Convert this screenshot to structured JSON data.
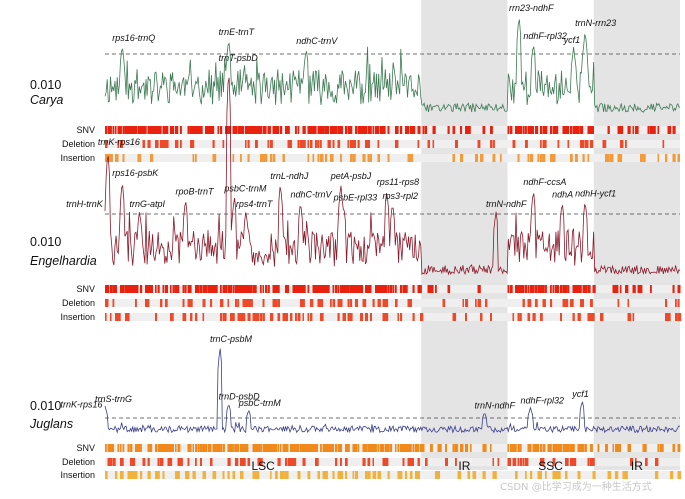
{
  "colors": {
    "carya_line": "#3f7a55",
    "engelhardia_line": "#8b1a2b",
    "juglans_line": "#3a3f8c",
    "snv_carya": "#e8220e",
    "snv_engel": "#e8220e",
    "snv_juglans": "#f08a1c",
    "deletion": "#ee4a2a",
    "insertion_carya": "#f39a3a",
    "insertion_engel": "#ee4a2a",
    "insertion_juglans": "#f2b23a",
    "ir_shade": "#e4e4e4",
    "track_bg": "#efefef"
  },
  "chart_data": [
    {
      "type": "line",
      "taxon": "Carya",
      "threshold_label": "0.010",
      "threshold": 0.01,
      "annotations": [
        {
          "text": "rps16-trnQ",
          "pos": 0.03,
          "value": 0.0115
        },
        {
          "text": "trnE-trnT",
          "pos": 0.215,
          "value": 0.0125
        },
        {
          "text": "ndhC-trnV",
          "pos": 0.35,
          "value": 0.011
        },
        {
          "text": "rrn23-ndhF",
          "pos": 0.72,
          "value": 0.0165
        },
        {
          "text": "ndhF-rpl32",
          "pos": 0.745,
          "value": 0.0118
        },
        {
          "text": "ycf1",
          "pos": 0.815,
          "value": 0.0112
        },
        {
          "text": "trnN-rrn23",
          "pos": 0.835,
          "value": 0.014
        }
      ],
      "tracks": [
        "SNV",
        "Deletion",
        "Insertion"
      ]
    },
    {
      "type": "line",
      "taxon": "Engelhardia",
      "threshold_label": "0.010",
      "threshold": 0.01,
      "annotations": [
        {
          "text": "trnH-trnK",
          "pos": -0.05,
          "value": 0.0105
        },
        {
          "text": "trnK-rps16",
          "pos": 0.005,
          "value": 0.0205
        },
        {
          "text": "rps16-psbK",
          "pos": 0.03,
          "value": 0.0155
        },
        {
          "text": "trnG-atpI",
          "pos": 0.06,
          "value": 0.0105
        },
        {
          "text": "rpoB-trnT",
          "pos": 0.14,
          "value": 0.0125
        },
        {
          "text": "trnT-psbD",
          "pos": 0.215,
          "value": 0.034
        },
        {
          "text": "psbC-trnM",
          "pos": 0.225,
          "value": 0.013
        },
        {
          "text": "rps4-trnT",
          "pos": 0.245,
          "value": 0.0105
        },
        {
          "text": "trnL-ndhJ",
          "pos": 0.305,
          "value": 0.015
        },
        {
          "text": "ndhC-trnV",
          "pos": 0.34,
          "value": 0.012
        },
        {
          "text": "petA-psbJ",
          "pos": 0.41,
          "value": 0.015
        },
        {
          "text": "psbE-rpl33",
          "pos": 0.415,
          "value": 0.0115
        },
        {
          "text": "rps11-rps8",
          "pos": 0.49,
          "value": 0.014
        },
        {
          "text": "rps3-rpl2",
          "pos": 0.5,
          "value": 0.0118
        },
        {
          "text": "trnN-ndhF",
          "pos": 0.68,
          "value": 0.0105
        },
        {
          "text": "ndhF-ccsA",
          "pos": 0.745,
          "value": 0.014
        },
        {
          "text": "ndhA",
          "pos": 0.795,
          "value": 0.012
        },
        {
          "text": "ndhH-ycf1",
          "pos": 0.835,
          "value": 0.0122
        }
      ],
      "tracks": [
        "SNV",
        "Deletion",
        "Insertion"
      ]
    },
    {
      "type": "line",
      "taxon": "Juglans",
      "threshold_label": "0.010",
      "threshold": 0.01,
      "annotations": [
        {
          "text": "trnK-rps16",
          "pos": -0.06,
          "value": 0.014
        },
        {
          "text": "trnS-trnG",
          "pos": 0.0,
          "value": 0.0175
        },
        {
          "text": "trnC-psbM",
          "pos": 0.2,
          "value": 0.055
        },
        {
          "text": "trnD-psbD",
          "pos": 0.215,
          "value": 0.019
        },
        {
          "text": "psbC-trnM",
          "pos": 0.25,
          "value": 0.015
        },
        {
          "text": "trnN-ndhF",
          "pos": 0.66,
          "value": 0.0135
        },
        {
          "text": "ndhF-rpl32",
          "pos": 0.74,
          "value": 0.0165
        },
        {
          "text": "ycf1",
          "pos": 0.83,
          "value": 0.0205
        }
      ],
      "tracks": [
        "SNV",
        "Deletion",
        "Insertion"
      ]
    }
  ],
  "regions": [
    {
      "name": "LSC",
      "start": 0.0,
      "end": 0.55
    },
    {
      "name": "IR",
      "start": 0.55,
      "end": 0.7
    },
    {
      "name": "SSC",
      "start": 0.7,
      "end": 0.85
    },
    {
      "name": "IR",
      "start": 0.85,
      "end": 1.0
    }
  ],
  "watermark": "CSDN @比学习成为一种生活方式"
}
